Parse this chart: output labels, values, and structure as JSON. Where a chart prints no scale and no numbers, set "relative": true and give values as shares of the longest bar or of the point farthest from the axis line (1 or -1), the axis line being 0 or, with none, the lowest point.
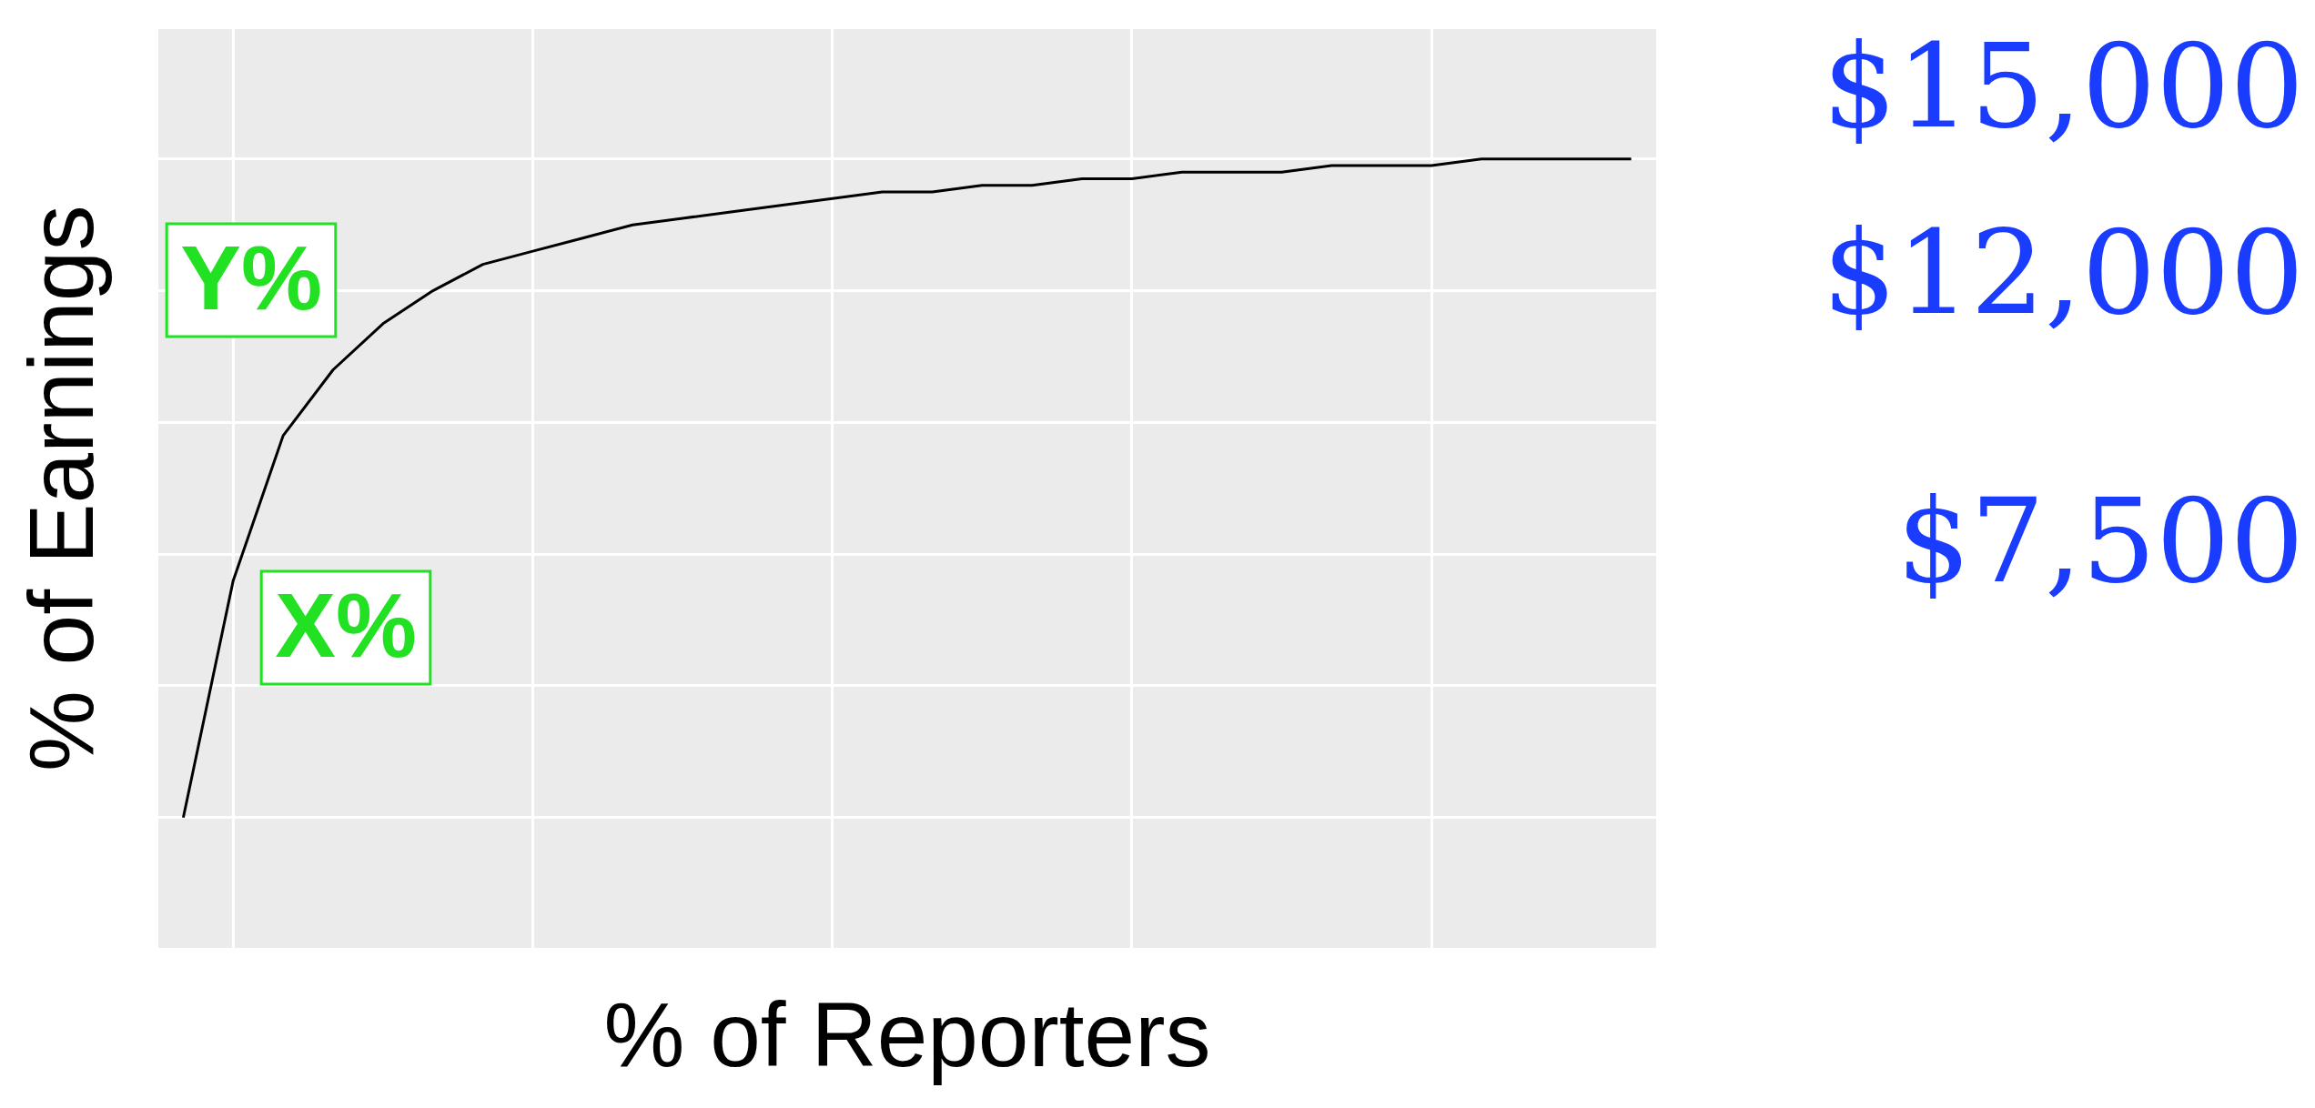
{
  "chart_data": {
    "type": "line",
    "xlabel": "% of Reporters",
    "ylabel": "% of Earnings",
    "relative": true,
    "grid": true,
    "legend": false,
    "marker": "none",
    "line_style": "solid",
    "categories": [
      null,
      null,
      null,
      null,
      null,
      null,
      null,
      null,
      null,
      null,
      null,
      null,
      null,
      null,
      null,
      null,
      null,
      null,
      null,
      null,
      null,
      null,
      null,
      null,
      null,
      null,
      null,
      null,
      null,
      null
    ],
    "series": [
      {
        "color": "#000000",
        "values": [
          0,
          0.36,
          0.58,
          0.68,
          0.75,
          0.8,
          0.84,
          0.86,
          0.88,
          0.9,
          0.91,
          0.92,
          0.93,
          0.94,
          0.95,
          0.95,
          0.96,
          0.96,
          0.97,
          0.97,
          0.98,
          0.98,
          0.98,
          0.99,
          0.99,
          0.99,
          1,
          1,
          1,
          1
        ]
      }
    ],
    "annotations": [
      "X%",
      "Y%",
      "$15,000",
      "$12,000",
      "$7,500"
    ]
  }
}
